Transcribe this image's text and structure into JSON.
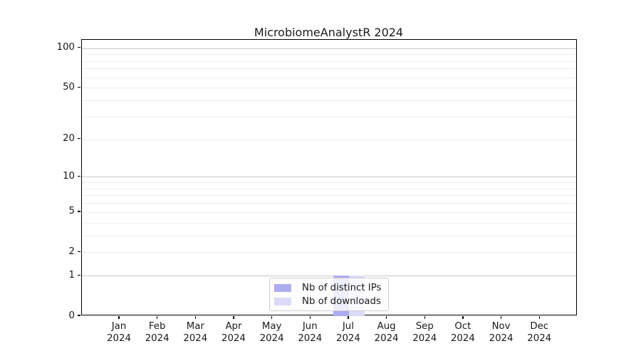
{
  "chart_data": {
    "type": "bar",
    "title": "MicrobiomeAnalystR 2024",
    "year": "2024",
    "categories": [
      "Jan",
      "Feb",
      "Mar",
      "Apr",
      "May",
      "Jun",
      "Jul",
      "Aug",
      "Sep",
      "Oct",
      "Nov",
      "Dec"
    ],
    "series": [
      {
        "name": "Nb of distinct IPs",
        "color": "#acacf2",
        "values": [
          0,
          0,
          0,
          0,
          0,
          0,
          1,
          0,
          0,
          0,
          0,
          0
        ]
      },
      {
        "name": "Nb of downloads",
        "color": "#dbdbf8",
        "values": [
          0,
          0,
          0,
          0,
          0,
          0,
          1,
          0,
          0,
          0,
          0,
          0
        ]
      }
    ],
    "xlabel": "",
    "ylabel": "",
    "yscale": "log10(1+y)",
    "ylim": [
      0,
      100
    ],
    "yticks": [
      0,
      1,
      2,
      5,
      10,
      20,
      50,
      100
    ],
    "y_major_gridlines": [
      1,
      10,
      100
    ],
    "y_minor_gridlines": [
      2,
      3,
      4,
      5,
      6,
      7,
      8,
      9,
      20,
      30,
      40,
      50,
      60,
      70,
      80,
      90
    ],
    "grid": "horizontal",
    "legend_position": "lower center inside plot"
  },
  "colors": {
    "grid_major": "#c8c8c8",
    "grid_minor": "#eeeeee",
    "legend_border": "#cccccc",
    "axis": "#000000"
  }
}
